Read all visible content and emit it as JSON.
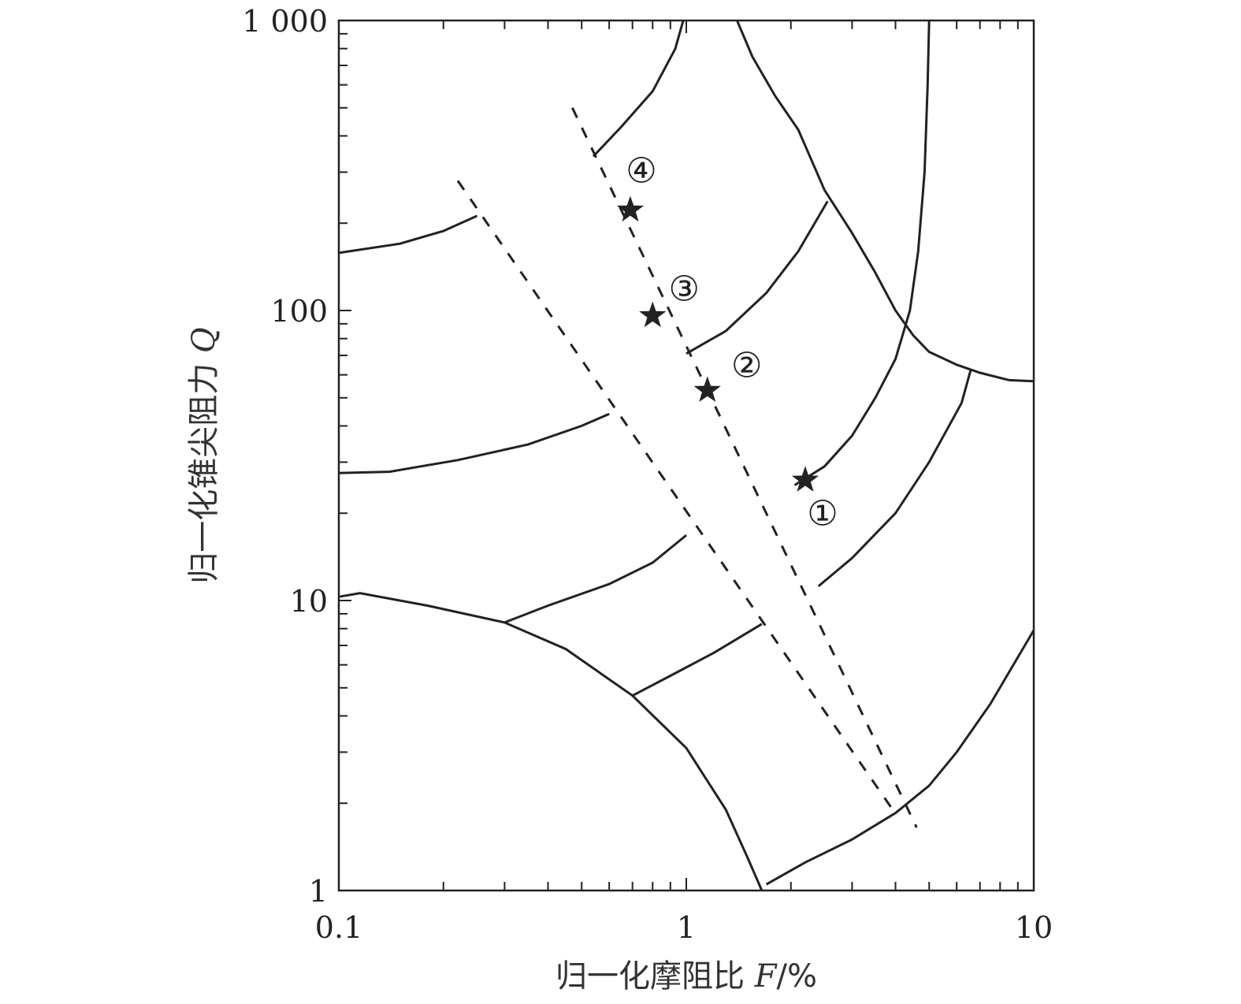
{
  "chart_data": {
    "type": "line",
    "x_scale": "log",
    "y_scale": "log",
    "xlim": [
      0.1,
      10
    ],
    "ylim": [
      1,
      1000
    ],
    "grid": false,
    "xlabel": "归一化摩阻比 F/%",
    "ylabel": "归一化锥尖阻力 Q",
    "xlabel_text": "归一化摩阻比 ",
    "xlabel_var": "F",
    "xlabel_unit": "/%",
    "ylabel_text": "归一化锥尖阻力 ",
    "ylabel_var": "Q",
    "x_ticks": [
      {
        "value": 0.1,
        "label": "0.1"
      },
      {
        "value": 1,
        "label": "1"
      },
      {
        "value": 10,
        "label": "10"
      }
    ],
    "y_ticks": [
      {
        "value": 1,
        "label": "1"
      },
      {
        "value": 10,
        "label": "10"
      },
      {
        "value": 100,
        "label": "100"
      },
      {
        "value": 1000,
        "label": "1 000"
      }
    ],
    "zone_boundaries": [
      {
        "points": [
          [
            0.1,
            10.3
          ],
          [
            0.115,
            10.6
          ],
          [
            0.18,
            9.6
          ],
          [
            0.3,
            8.4
          ],
          [
            0.45,
            6.8
          ],
          [
            0.7,
            4.7
          ],
          [
            1.0,
            3.1
          ],
          [
            1.3,
            1.9
          ],
          [
            1.5,
            1.3
          ],
          [
            1.65,
            1.0
          ]
        ]
      },
      {
        "points": [
          [
            0.3,
            8.4
          ],
          [
            0.4,
            9.6
          ],
          [
            0.6,
            11.4
          ],
          [
            0.8,
            13.5
          ],
          [
            1.0,
            16.8
          ]
        ]
      },
      {
        "points": [
          [
            0.7,
            4.7
          ],
          [
            0.9,
            5.5
          ],
          [
            1.2,
            6.6
          ],
          [
            1.65,
            8.3
          ]
        ]
      },
      {
        "points": [
          [
            0.1,
            27.5
          ],
          [
            0.14,
            27.8
          ],
          [
            0.22,
            30.5
          ],
          [
            0.35,
            34.5
          ],
          [
            0.5,
            40.0
          ],
          [
            0.6,
            44.0
          ]
        ]
      },
      {
        "points": [
          [
            0.1,
            158
          ],
          [
            0.15,
            170
          ],
          [
            0.2,
            188
          ],
          [
            0.25,
            212
          ]
        ]
      },
      {
        "points": [
          [
            1.7,
            1.05
          ],
          [
            2.2,
            1.25
          ],
          [
            3.0,
            1.5
          ],
          [
            4.0,
            1.85
          ],
          [
            5.0,
            2.3
          ],
          [
            6.0,
            3.0
          ],
          [
            7.5,
            4.4
          ],
          [
            10.0,
            7.9
          ]
        ]
      },
      {
        "points": [
          [
            2.4,
            11.2
          ],
          [
            3.0,
            14.0
          ],
          [
            4.0,
            20.0
          ],
          [
            5.0,
            30.0
          ],
          [
            6.2,
            48.0
          ],
          [
            6.6,
            63.0
          ]
        ]
      },
      {
        "points": [
          [
            2.05,
            25.0
          ],
          [
            2.5,
            29.0
          ],
          [
            3.0,
            37.0
          ],
          [
            3.5,
            50.0
          ],
          [
            4.0,
            68.0
          ],
          [
            4.4,
            100.0
          ],
          [
            4.65,
            160.0
          ],
          [
            4.85,
            300.0
          ],
          [
            4.95,
            600.0
          ],
          [
            5.0,
            1000.0
          ]
        ]
      },
      {
        "points": [
          [
            1.0,
            71.0
          ],
          [
            1.3,
            85.0
          ],
          [
            1.7,
            115.0
          ],
          [
            2.1,
            160.0
          ],
          [
            2.55,
            238.0
          ]
        ]
      },
      {
        "points": [
          [
            1.4,
            1000.0
          ],
          [
            1.55,
            750.0
          ],
          [
            1.8,
            550.0
          ],
          [
            2.1,
            420.0
          ],
          [
            2.5,
            260.0
          ],
          [
            3.0,
            185.0
          ],
          [
            3.5,
            135.0
          ],
          [
            4.0,
            100.0
          ],
          [
            4.5,
            82.0
          ],
          [
            5.0,
            72.0
          ],
          [
            6.0,
            65.0
          ],
          [
            7.0,
            61.0
          ],
          [
            8.5,
            57.5
          ],
          [
            10.0,
            57.0
          ]
        ]
      },
      {
        "points": [
          [
            0.54,
            340.0
          ],
          [
            0.65,
            430.0
          ],
          [
            0.8,
            570.0
          ],
          [
            0.93,
            800.0
          ],
          [
            0.98,
            1000.0
          ]
        ]
      }
    ],
    "dashed_lines": [
      {
        "points": [
          [
            0.22,
            280.0
          ],
          [
            3.95,
            1.88
          ]
        ]
      },
      {
        "points": [
          [
            0.47,
            500.0
          ],
          [
            4.6,
            1.65
          ]
        ]
      }
    ],
    "points": [
      {
        "label": "①",
        "x": 2.2,
        "y": 26.0
      },
      {
        "label": "②",
        "x": 1.15,
        "y": 53.0
      },
      {
        "label": "③",
        "x": 0.8,
        "y": 96.0
      },
      {
        "label": "④",
        "x": 0.69,
        "y": 222.0
      }
    ]
  }
}
